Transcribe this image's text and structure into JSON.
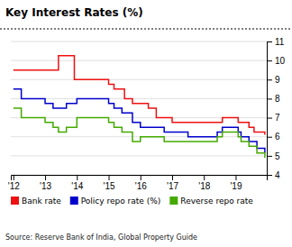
{
  "chart_data": {
    "type": "step",
    "title": "Key Interest Rates (%)",
    "annotations": [
      "Source: Reserve Bank of India, Global Property Guide"
    ],
    "xlim": [
      2011.92,
      2019.98
    ],
    "xticks": [
      {
        "value": 2012,
        "label": "'12"
      },
      {
        "value": 2013,
        "label": "'13"
      },
      {
        "value": 2014,
        "label": "'14"
      },
      {
        "value": 2015,
        "label": "'15"
      },
      {
        "value": 2016,
        "label": "'16"
      },
      {
        "value": 2017,
        "label": "'17"
      },
      {
        "value": 2018,
        "label": "'18"
      },
      {
        "value": 2019,
        "label": "'19"
      }
    ],
    "ylim": [
      4,
      11
    ],
    "yticks": [
      4,
      5,
      6,
      7,
      8,
      9,
      10,
      11
    ],
    "grid": true,
    "legend": "bottom",
    "series": [
      {
        "name": "Bank rate",
        "color": "#ee1111",
        "x": [
          2012.0,
          2012.08,
          2012.25,
          2012.5,
          2012.75,
          2013.0,
          2013.25,
          2013.33,
          2013.42,
          2013.58,
          2013.67,
          2013.75,
          2013.92,
          2014.08,
          2014.17,
          2014.5,
          2014.75,
          2015.0,
          2015.17,
          2015.5,
          2015.75,
          2016.0,
          2016.25,
          2016.5,
          2016.75,
          2017.0,
          2017.25,
          2017.5,
          2017.75,
          2018.0,
          2018.25,
          2018.5,
          2018.58,
          2018.75,
          2019.0,
          2019.08,
          2019.17,
          2019.42,
          2019.58,
          2019.75,
          2019.92
        ],
        "values": [
          9.5,
          9.5,
          9.5,
          9.5,
          9.5,
          9.5,
          9.5,
          9.5,
          10.25,
          10.25,
          10.25,
          10.25,
          9.0,
          9.0,
          9.0,
          9.0,
          9.0,
          8.75,
          8.5,
          8.0,
          7.75,
          7.75,
          7.5,
          7.0,
          7.0,
          6.75,
          6.75,
          6.75,
          6.75,
          6.75,
          6.75,
          6.75,
          7.0,
          7.0,
          7.0,
          6.75,
          6.75,
          6.5,
          6.25,
          6.25,
          6.1
        ]
      },
      {
        "name": "Policy repo rate (%)",
        "color": "#0000cc",
        "x": [
          2012.0,
          2012.08,
          2012.25,
          2012.5,
          2012.75,
          2013.0,
          2013.08,
          2013.25,
          2013.42,
          2013.67,
          2013.83,
          2014.0,
          2014.17,
          2014.5,
          2014.75,
          2015.0,
          2015.17,
          2015.42,
          2015.75,
          2016.0,
          2016.5,
          2016.75,
          2017.0,
          2017.5,
          2017.75,
          2018.0,
          2018.25,
          2018.42,
          2018.58,
          2018.75,
          2019.0,
          2019.08,
          2019.17,
          2019.42,
          2019.67,
          2019.92
        ],
        "values": [
          8.5,
          8.5,
          8.0,
          8.0,
          8.0,
          7.75,
          7.75,
          7.5,
          7.5,
          7.75,
          7.75,
          8.0,
          8.0,
          8.0,
          8.0,
          7.75,
          7.5,
          7.25,
          6.75,
          6.5,
          6.5,
          6.25,
          6.25,
          6.0,
          6.0,
          6.0,
          6.0,
          6.25,
          6.5,
          6.5,
          6.5,
          6.25,
          6.0,
          5.75,
          5.4,
          5.15
        ]
      },
      {
        "name": "Reverse repo rate",
        "color": "#44aa00",
        "x": [
          2012.0,
          2012.08,
          2012.25,
          2012.5,
          2012.75,
          2013.0,
          2013.08,
          2013.25,
          2013.42,
          2013.67,
          2013.83,
          2014.0,
          2014.17,
          2014.5,
          2014.75,
          2015.0,
          2015.17,
          2015.42,
          2015.75,
          2016.0,
          2016.5,
          2016.75,
          2017.0,
          2017.5,
          2017.75,
          2018.0,
          2018.25,
          2018.42,
          2018.58,
          2018.75,
          2019.0,
          2019.08,
          2019.17,
          2019.42,
          2019.67,
          2019.92
        ],
        "values": [
          7.5,
          7.5,
          7.0,
          7.0,
          7.0,
          6.75,
          6.75,
          6.5,
          6.25,
          6.5,
          6.5,
          7.0,
          7.0,
          7.0,
          7.0,
          6.75,
          6.5,
          6.25,
          5.75,
          6.0,
          6.0,
          5.75,
          5.75,
          5.75,
          5.75,
          5.75,
          5.75,
          6.0,
          6.25,
          6.25,
          6.25,
          6.0,
          5.75,
          5.5,
          5.15,
          4.9
        ]
      }
    ]
  }
}
